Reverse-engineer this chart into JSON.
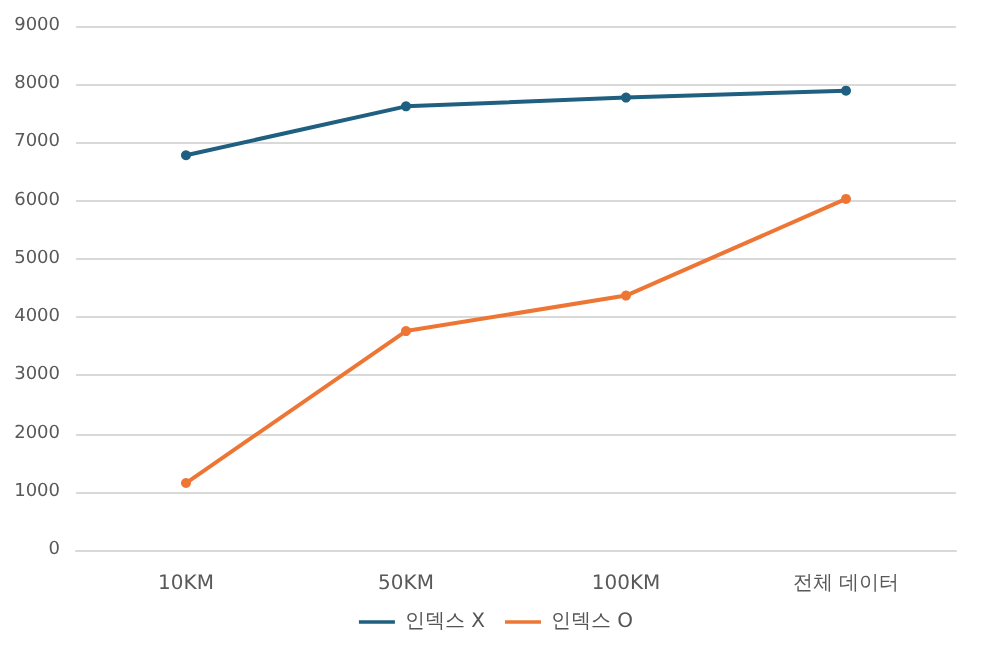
{
  "chart_data": {
    "type": "line",
    "categories": [
      "10KM",
      "50KM",
      "100KM",
      "전체 데이터"
    ],
    "series": [
      {
        "name": "인덱스 X",
        "color": "#1f5f7f",
        "values": [
          6780,
          7620,
          7770,
          7890
        ]
      },
      {
        "name": "인덱스 O",
        "color": "#ed7634",
        "values": [
          1150,
          3760,
          4370,
          6030
        ]
      }
    ],
    "ylim": [
      0,
      9000
    ],
    "yticks": [
      0,
      1000,
      2000,
      3000,
      4000,
      5000,
      6000,
      7000,
      8000,
      9000
    ],
    "grid": "y",
    "legend": "bottom",
    "marker": "circle",
    "line_style": "solid"
  }
}
